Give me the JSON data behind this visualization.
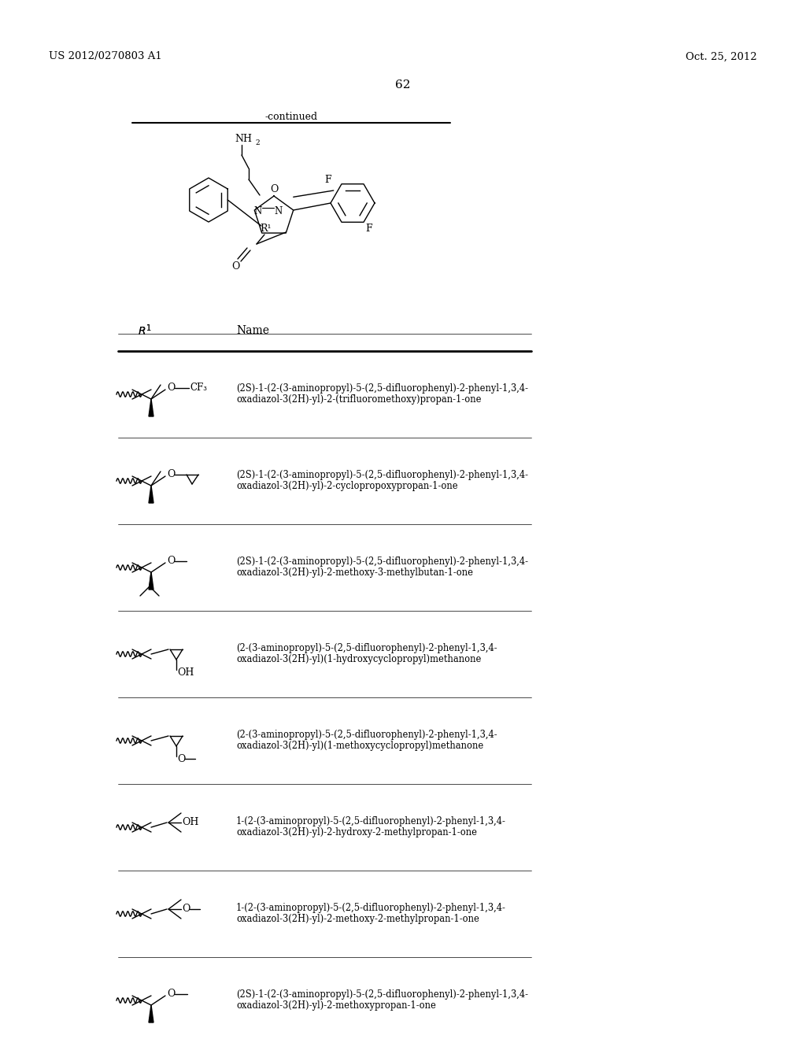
{
  "page_number": "62",
  "patent_number": "US 2012/0270803 A1",
  "patent_date": "Oct. 25, 2012",
  "continued_text": "-continued",
  "bg_color": "#ffffff",
  "rows": [
    {
      "name_lines": [
        "(2S)-1-(2-(3-aminopropyl)-5-(2,5-difluorophenyl)-2-phenyl-1,3,4-",
        "oxadiazol-3(2H)-yl)-2-(trifluoromethoxy)propan-1-one"
      ],
      "structure_type": "cf3oxy"
    },
    {
      "name_lines": [
        "(2S)-1-(2-(3-aminopropyl)-5-(2,5-difluorophenyl)-2-phenyl-1,3,4-",
        "oxadiazol-3(2H)-yl)-2-cyclopropoxypropan-1-one"
      ],
      "structure_type": "cyclopropoxy"
    },
    {
      "name_lines": [
        "(2S)-1-(2-(3-aminopropyl)-5-(2,5-difluorophenyl)-2-phenyl-1,3,4-",
        "oxadiazol-3(2H)-yl)-2-methoxy-3-methylbutan-1-one"
      ],
      "structure_type": "methoxy_isobutyl"
    },
    {
      "name_lines": [
        "(2-(3-aminopropyl)-5-(2,5-difluorophenyl)-2-phenyl-1,3,4-",
        "oxadiazol-3(2H)-yl)(1-hydroxycyclopropyl)methanone"
      ],
      "structure_type": "hydroxycyclopropyl"
    },
    {
      "name_lines": [
        "(2-(3-aminopropyl)-5-(2,5-difluorophenyl)-2-phenyl-1,3,4-",
        "oxadiazol-3(2H)-yl)(1-methoxycyclopropyl)methanone"
      ],
      "structure_type": "methoxycyclopropyl"
    },
    {
      "name_lines": [
        "1-(2-(3-aminopropyl)-5-(2,5-difluorophenyl)-2-phenyl-1,3,4-",
        "oxadiazol-3(2H)-yl)-2-hydroxy-2-methylpropan-1-one"
      ],
      "structure_type": "hydroxy_dimethyl"
    },
    {
      "name_lines": [
        "1-(2-(3-aminopropyl)-5-(2,5-difluorophenyl)-2-phenyl-1,3,4-",
        "oxadiazol-3(2H)-yl)-2-methoxy-2-methylpropan-1-one"
      ],
      "structure_type": "methoxy_dimethyl"
    },
    {
      "name_lines": [
        "(2S)-1-(2-(3-aminopropyl)-5-(2,5-difluorophenyl)-2-phenyl-1,3,4-",
        "oxadiazol-3(2H)-yl)-2-methoxypropan-1-one"
      ],
      "structure_type": "methoxypropyl"
    }
  ]
}
